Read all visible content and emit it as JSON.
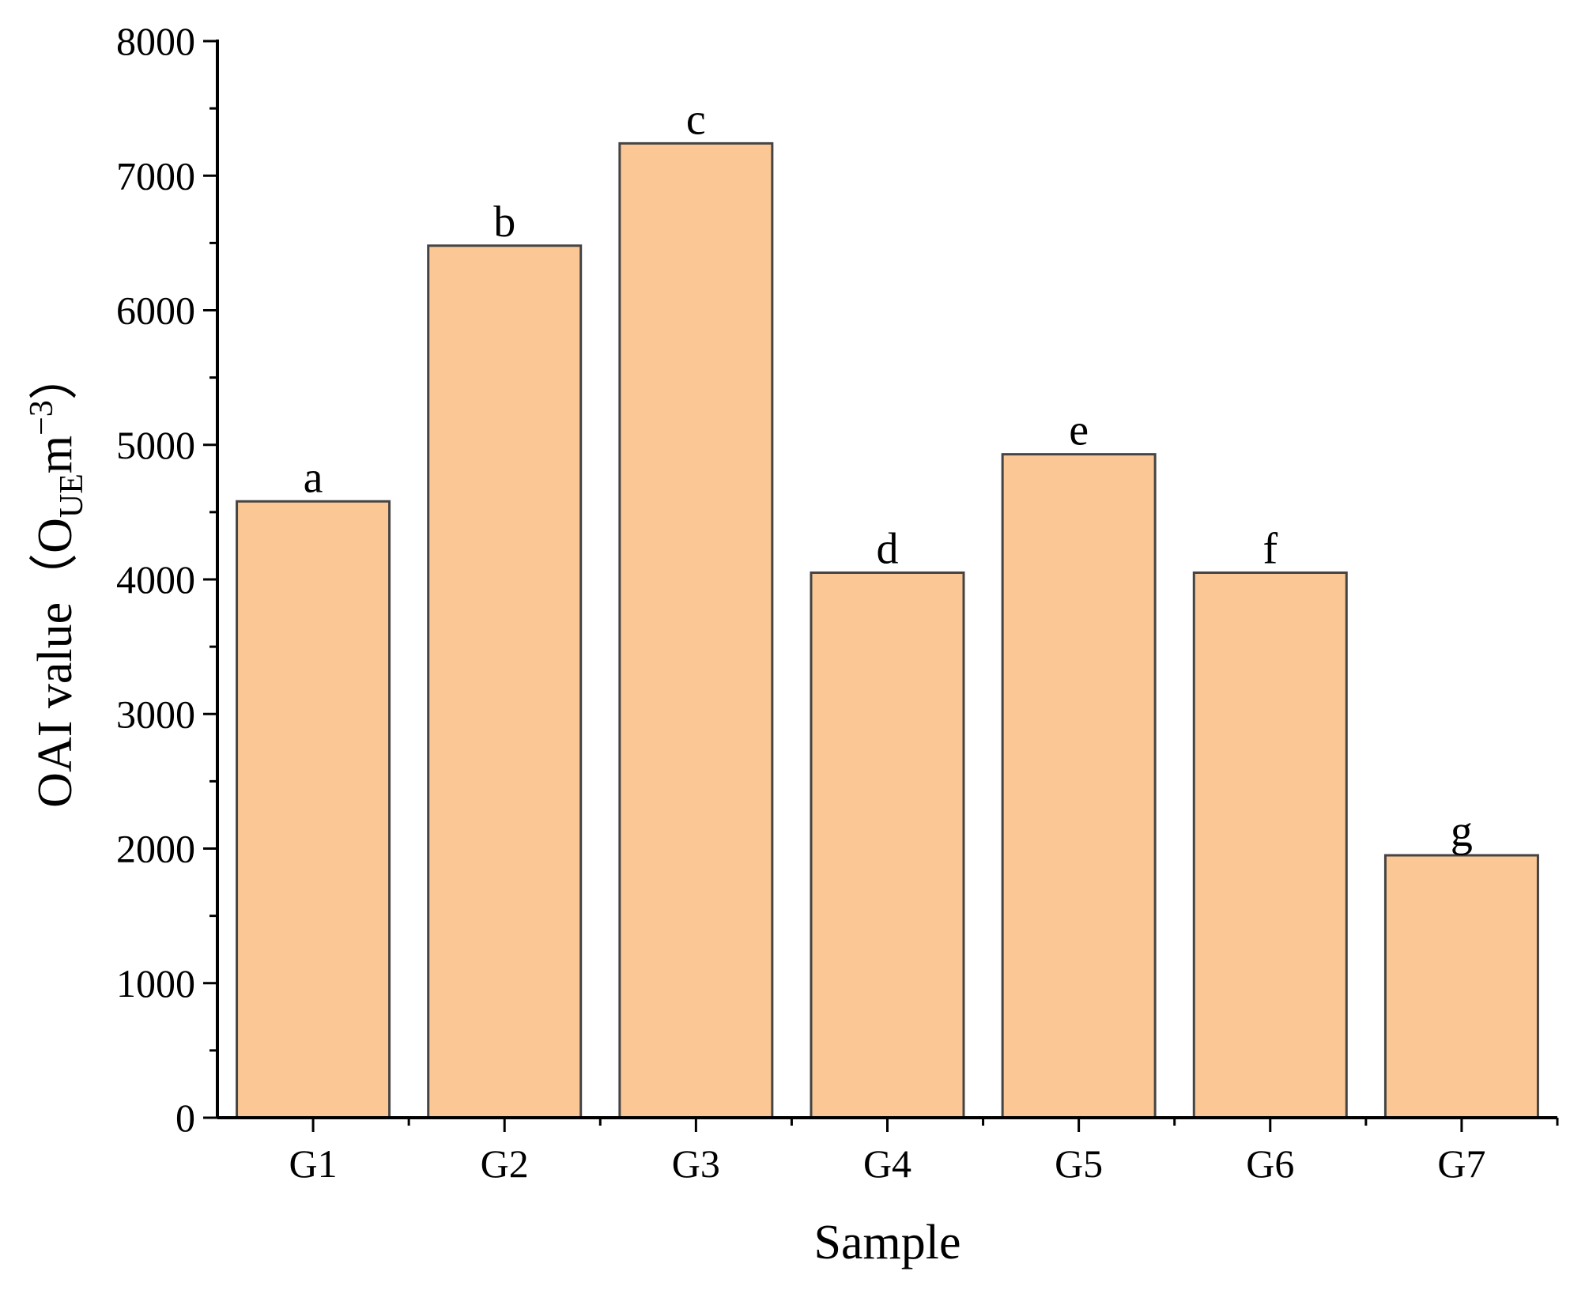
{
  "chart_data": {
    "type": "bar",
    "categories": [
      "G1",
      "G2",
      "G3",
      "G4",
      "G5",
      "G6",
      "G7"
    ],
    "values": [
      4580,
      6480,
      7240,
      4050,
      4930,
      4050,
      1950
    ],
    "significance_letters": [
      "a",
      "b",
      "c",
      "d",
      "e",
      "f",
      "g"
    ],
    "title": "",
    "xlabel": "Sample",
    "ylabel": {
      "prefix": "OAI value（O",
      "subscript": "UE",
      "unit": "m",
      "superscript": "−3",
      "suffix": "）"
    },
    "ylim": [
      0,
      8000
    ],
    "yticks": [
      0,
      1000,
      2000,
      3000,
      4000,
      5000,
      6000,
      7000,
      8000
    ],
    "bar_color": "#FBC794",
    "bar_edge_color": "#444444",
    "grid": false,
    "legend": "none"
  }
}
